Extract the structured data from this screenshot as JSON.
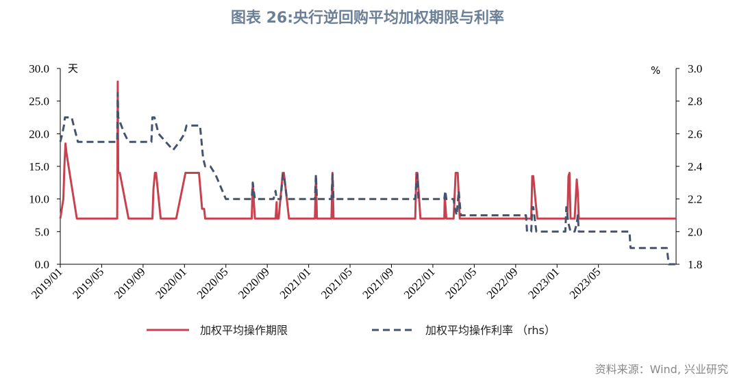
{
  "title": "图表 26:央行逆回购平均加权期限与利率",
  "source": "资料来源：Wind, 兴业研究",
  "chart_data": {
    "type": "line",
    "left_axis": {
      "unit": "天",
      "ylim": [
        0,
        30
      ],
      "ticks": [
        "0.0",
        "5.0",
        "10.0",
        "15.0",
        "20.0",
        "25.0",
        "30.0"
      ]
    },
    "right_axis": {
      "unit": "%",
      "ylim": [
        1.8,
        3.0
      ],
      "ticks": [
        "1.8",
        "2.0",
        "2.2",
        "2.4",
        "2.6",
        "2.8",
        "3.0"
      ]
    },
    "x_ticks": [
      "2019/01",
      "2019/05",
      "2019/09",
      "2020/01",
      "2020/05",
      "2020/09",
      "2021/01",
      "2021/05",
      "2021/09",
      "2022/01",
      "2022/05",
      "2022/09",
      "2023/01",
      "2023/05"
    ],
    "xlim": [
      0,
      59.5
    ],
    "series": [
      {
        "name": "加权平均操作期限",
        "axis": "left",
        "color": "#c8414f",
        "style": "solid",
        "points": [
          [
            0,
            7
          ],
          [
            0.3,
            10
          ],
          [
            0.4,
            15
          ],
          [
            0.5,
            18.5
          ],
          [
            0.6,
            17
          ],
          [
            0.9,
            14
          ],
          [
            1.6,
            7
          ],
          [
            5.5,
            7
          ],
          [
            5.55,
            28
          ],
          [
            5.6,
            14
          ],
          [
            5.75,
            14
          ],
          [
            6.6,
            7
          ],
          [
            8.9,
            7
          ],
          [
            9.0,
            11.5
          ],
          [
            9.15,
            14
          ],
          [
            9.25,
            14
          ],
          [
            9.7,
            7
          ],
          [
            11.2,
            7
          ],
          [
            12.1,
            14
          ],
          [
            13.4,
            14
          ],
          [
            13.7,
            8.5
          ],
          [
            13.9,
            8.5
          ],
          [
            14.0,
            7
          ],
          [
            18.5,
            7
          ],
          [
            18.6,
            12.5
          ],
          [
            18.8,
            7
          ],
          [
            20.8,
            7
          ],
          [
            20.9,
            9.5
          ],
          [
            20.95,
            7
          ],
          [
            21.1,
            7
          ],
          [
            21.3,
            10.5
          ],
          [
            21.5,
            14
          ],
          [
            21.6,
            14
          ],
          [
            22.1,
            7
          ],
          [
            24.6,
            7
          ],
          [
            24.7,
            13.5
          ],
          [
            24.8,
            7
          ],
          [
            26.2,
            7
          ],
          [
            26.3,
            14
          ],
          [
            26.4,
            7
          ],
          [
            34.3,
            7
          ],
          [
            34.4,
            14
          ],
          [
            34.5,
            14
          ],
          [
            34.8,
            7
          ],
          [
            37.1,
            7
          ],
          [
            37.15,
            10.5
          ],
          [
            37.3,
            7
          ],
          [
            38.0,
            7
          ],
          [
            38.2,
            14
          ],
          [
            38.4,
            14
          ],
          [
            38.6,
            7
          ],
          [
            45.5,
            7
          ],
          [
            45.6,
            13.5
          ],
          [
            45.7,
            13.5
          ],
          [
            45.9,
            10
          ],
          [
            46.1,
            7
          ],
          [
            49.0,
            7
          ],
          [
            49.1,
            13.5
          ],
          [
            49.2,
            14
          ],
          [
            49.3,
            7
          ],
          [
            49.7,
            7
          ],
          [
            49.9,
            13
          ],
          [
            50.0,
            11
          ],
          [
            50.1,
            7
          ],
          [
            59.5,
            7
          ]
        ]
      },
      {
        "name": "加权平均操作利率",
        "axis": "right",
        "color": "#44536e",
        "style": "dashed",
        "points": [
          [
            0,
            2.55
          ],
          [
            0.2,
            2.6
          ],
          [
            0.35,
            2.65
          ],
          [
            0.45,
            2.7
          ],
          [
            1.1,
            2.7
          ],
          [
            1.5,
            2.6
          ],
          [
            1.7,
            2.55
          ],
          [
            5.5,
            2.55
          ],
          [
            5.55,
            2.85
          ],
          [
            5.6,
            2.7
          ],
          [
            5.9,
            2.65
          ],
          [
            6.2,
            2.6
          ],
          [
            6.6,
            2.55
          ],
          [
            8.8,
            2.55
          ],
          [
            8.9,
            2.7
          ],
          [
            9.1,
            2.7
          ],
          [
            9.3,
            2.65
          ],
          [
            9.5,
            2.6
          ],
          [
            10.2,
            2.55
          ],
          [
            10.9,
            2.5
          ],
          [
            11.5,
            2.55
          ],
          [
            12.0,
            2.6
          ],
          [
            12.2,
            2.65
          ],
          [
            13.5,
            2.65
          ],
          [
            13.8,
            2.45
          ],
          [
            14.0,
            2.4
          ],
          [
            14.5,
            2.4
          ],
          [
            15.0,
            2.35
          ],
          [
            16.0,
            2.2
          ],
          [
            18.5,
            2.2
          ],
          [
            18.6,
            2.3
          ],
          [
            18.8,
            2.2
          ],
          [
            20.6,
            2.2
          ],
          [
            20.8,
            2.25
          ],
          [
            20.9,
            2.2
          ],
          [
            21.3,
            2.2
          ],
          [
            21.5,
            2.35
          ],
          [
            21.6,
            2.35
          ],
          [
            21.9,
            2.2
          ],
          [
            24.6,
            2.2
          ],
          [
            24.7,
            2.35
          ],
          [
            24.8,
            2.2
          ],
          [
            26.2,
            2.2
          ],
          [
            26.3,
            2.35
          ],
          [
            26.4,
            2.2
          ],
          [
            34.3,
            2.2
          ],
          [
            34.4,
            2.3
          ],
          [
            34.5,
            2.35
          ],
          [
            34.6,
            2.2
          ],
          [
            37.1,
            2.2
          ],
          [
            37.2,
            2.25
          ],
          [
            37.3,
            2.2
          ],
          [
            38.0,
            2.2
          ],
          [
            38.1,
            2.15
          ],
          [
            38.3,
            2.1
          ],
          [
            38.5,
            2.25
          ],
          [
            38.7,
            2.1
          ],
          [
            45.0,
            2.1
          ],
          [
            45.1,
            2.0
          ],
          [
            45.5,
            2.0
          ],
          [
            45.6,
            2.15
          ],
          [
            45.7,
            2.15
          ],
          [
            46.0,
            2.0
          ],
          [
            48.8,
            2.0
          ],
          [
            48.9,
            2.15
          ],
          [
            49.1,
            2.05
          ],
          [
            49.3,
            2.0
          ],
          [
            49.7,
            2.0
          ],
          [
            49.9,
            2.05
          ],
          [
            50.0,
            2.1
          ],
          [
            50.1,
            2.0
          ],
          [
            55.0,
            2.0
          ],
          [
            55.1,
            1.9
          ],
          [
            58.6,
            1.9
          ],
          [
            58.8,
            1.8
          ],
          [
            59.5,
            1.8
          ]
        ]
      }
    ],
    "legend": {
      "placement": "bottom",
      "items": [
        "加权平均操作期限",
        "加权平均操作利率 （rhs）"
      ]
    }
  }
}
